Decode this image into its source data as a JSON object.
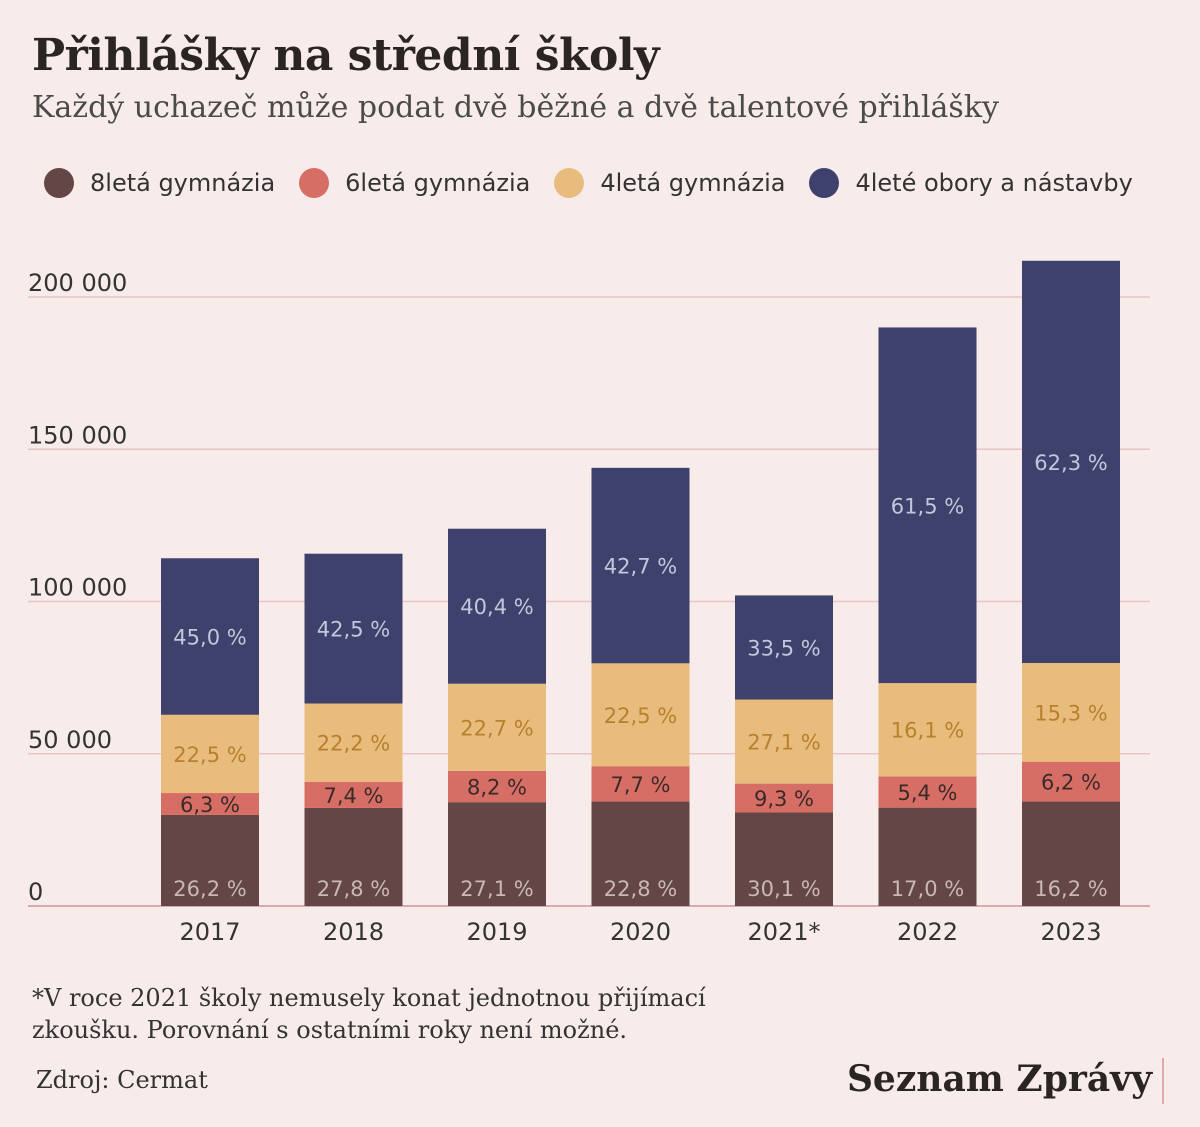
{
  "header": {
    "title": "Přihlášky na střední školy",
    "subtitle": "Každý uchazeč může podat dvě běžné a dvě talentové přihlášky"
  },
  "legend": [
    {
      "label": "8letá gymnázia",
      "color": "#634645"
    },
    {
      "label": "6letá gymnázia",
      "color": "#d76e66"
    },
    {
      "label": "4letá gymnázia",
      "color": "#e8bc7c"
    },
    {
      "label": "4leté obory a nástavby",
      "color": "#3e416b"
    }
  ],
  "chart_data": {
    "type": "bar",
    "stacked": true,
    "categories": [
      "2017",
      "2018",
      "2019",
      "2020",
      "2021*",
      "2022",
      "2023"
    ],
    "ylim": [
      0,
      200000
    ],
    "yticks": [
      0,
      50000,
      100000,
      150000,
      200000
    ],
    "ytick_labels": [
      "0",
      "50 000",
      "100 000",
      "150 000",
      "200 000"
    ],
    "grid": true,
    "legend_placement": "top",
    "series": [
      {
        "name": "8letá gymnázia",
        "color": "#634645",
        "label_color": "#c9b8b3",
        "values": [
          29900,
          32200,
          34100,
          34300,
          30700,
          32300,
          34300
        ],
        "labels": [
          "26,2 %",
          "27,8 %",
          "27,1 %",
          "22,8 %",
          "30,1 %",
          "17,0 %",
          "16,2 %"
        ]
      },
      {
        "name": "6letá gymnázia",
        "color": "#d76e66",
        "label_color": "#3a2a28",
        "values": [
          7200,
          8600,
          10300,
          11600,
          9500,
          10300,
          13100
        ],
        "labels": [
          "6,3 %",
          "7,4 %",
          "8,2 %",
          "7,7 %",
          "9,3 %",
          "5,4 %",
          "6,2 %"
        ]
      },
      {
        "name": "4letá gymnázia",
        "color": "#e8bc7c",
        "label_color": "#b8802e",
        "values": [
          25700,
          25700,
          28600,
          33800,
          27600,
          30600,
          32400
        ],
        "labels": [
          "22,5 %",
          "22,2 %",
          "22,7 %",
          "22,5 %",
          "27,1 %",
          "16,1 %",
          "15,3 %"
        ]
      },
      {
        "name": "4leté obory a nástavby",
        "color": "#3e416b",
        "label_color": "#c3c6dc",
        "values": [
          51400,
          49200,
          50900,
          64200,
          34200,
          116800,
          132100
        ],
        "labels": [
          "45,0 %",
          "42,5 %",
          "40,4 %",
          "42,7 %",
          "33,5 %",
          "61,5 %",
          "62,3 %"
        ]
      }
    ]
  },
  "footer": {
    "footnote": "*V roce 2021 školy nemusely konat jednotnou přijímací zkoušku. Porovnání s ostatními roky není možné.",
    "source": "Zdroj: Cermat",
    "brand": "Seznam Zprávy"
  }
}
